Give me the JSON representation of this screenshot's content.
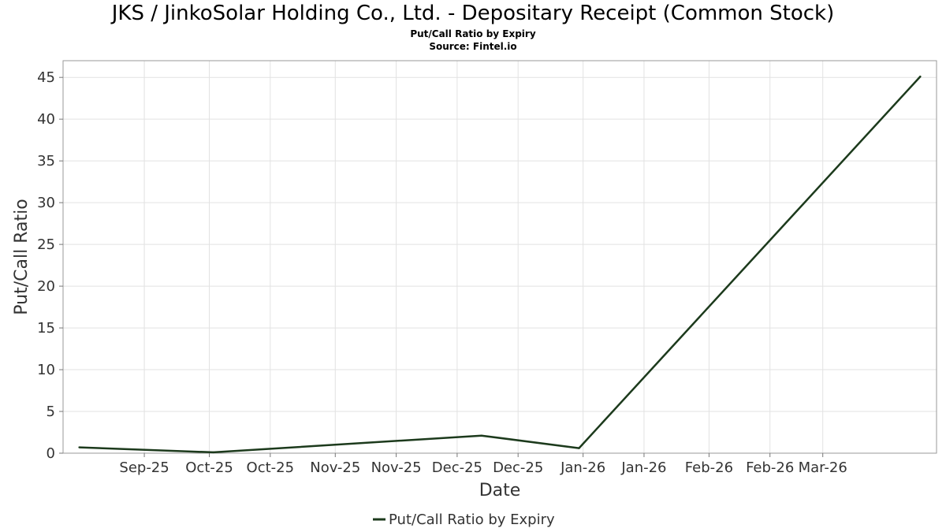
{
  "chart_data": {
    "type": "line",
    "title": "JKS / JinkoSolar Holding Co., Ltd. - Depositary Receipt (Common Stock)",
    "subtitle": "Put/Call Ratio by Expiry",
    "source": "Source: Fintel.io",
    "xlabel": "Date",
    "ylabel": "Put/Call Ratio",
    "ylim": [
      0,
      47
    ],
    "yticks": [
      0,
      5,
      10,
      15,
      20,
      25,
      30,
      35,
      40,
      45
    ],
    "xlim": [
      "2025-08-26",
      "2026-03-29"
    ],
    "xticks": [
      {
        "date": "2025-09-15",
        "label": "Sep-25"
      },
      {
        "date": "2025-10-01",
        "label": "Oct-25"
      },
      {
        "date": "2025-10-16",
        "label": "Oct-25"
      },
      {
        "date": "2025-11-01",
        "label": "Nov-25"
      },
      {
        "date": "2025-11-16",
        "label": "Nov-25"
      },
      {
        "date": "2025-12-01",
        "label": "Dec-25"
      },
      {
        "date": "2025-12-16",
        "label": "Dec-25"
      },
      {
        "date": "2026-01-01",
        "label": "Jan-26"
      },
      {
        "date": "2026-01-16",
        "label": "Jan-26"
      },
      {
        "date": "2026-02-01",
        "label": "Feb-26"
      },
      {
        "date": "2026-02-16",
        "label": "Feb-26"
      },
      {
        "date": "2026-03-01",
        "label": "Mar-26"
      }
    ],
    "grid": true,
    "legend_position": "bottom-center",
    "series": [
      {
        "name": "Put/Call Ratio by Expiry",
        "color": "#1c3a1c",
        "x": [
          "2025-08-30",
          "2025-10-02",
          "2025-12-07",
          "2025-12-31",
          "2026-03-25"
        ],
        "values": [
          0.7,
          0.1,
          2.1,
          0.6,
          45.1
        ]
      }
    ]
  }
}
